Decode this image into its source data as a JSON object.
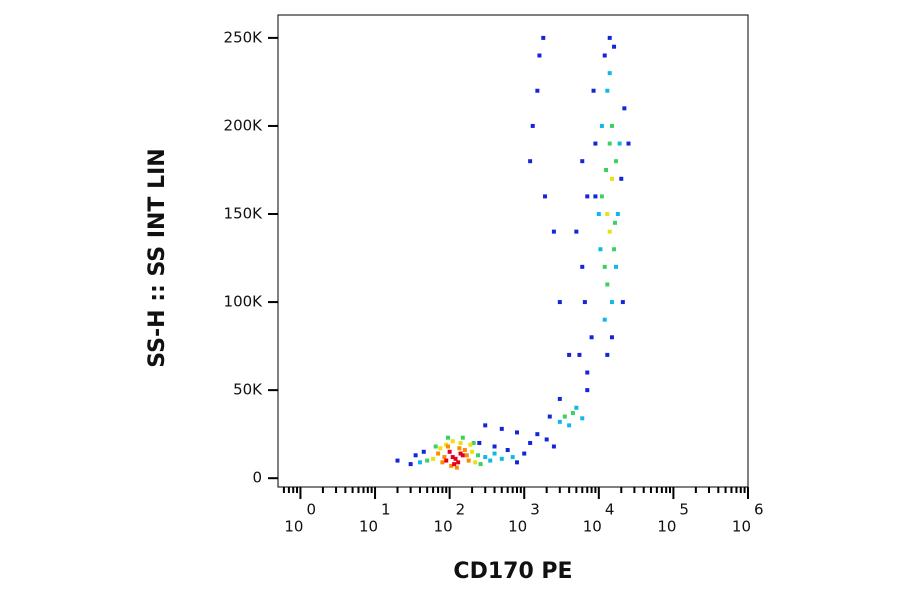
{
  "chart_data": {
    "type": "scatter",
    "xlabel": "CD170 PE",
    "ylabel": "SS-H :: SS INT LIN",
    "xscale": "log",
    "xlim": [
      0.5,
      1000000
    ],
    "ylim": [
      -5000,
      263000
    ],
    "xticks": [
      {
        "value": 1,
        "label": "10",
        "exponent": "0"
      },
      {
        "value": 10,
        "label": "10",
        "exponent": "1"
      },
      {
        "value": 100,
        "label": "10",
        "exponent": "2"
      },
      {
        "value": 1000,
        "label": "10",
        "exponent": "3"
      },
      {
        "value": 10000,
        "label": "10",
        "exponent": "4"
      },
      {
        "value": 100000,
        "label": "10",
        "exponent": "5"
      },
      {
        "value": 1000000,
        "label": "10",
        "exponent": "6"
      }
    ],
    "xminorticks": [
      0.6,
      0.7,
      0.8,
      0.9,
      2,
      3,
      4,
      5,
      6,
      7,
      8,
      9,
      20,
      30,
      40,
      50,
      60,
      70,
      80,
      90,
      200,
      300,
      400,
      500,
      600,
      700,
      800,
      900,
      2000,
      3000,
      4000,
      5000,
      6000,
      7000,
      8000,
      9000,
      20000,
      30000,
      40000,
      50000,
      60000,
      70000,
      80000,
      90000,
      200000,
      300000,
      400000,
      500000,
      600000,
      700000,
      800000,
      900000
    ],
    "yticks": [
      0,
      {
        "value": 50000,
        "label": "50K"
      },
      {
        "value": 100000,
        "label": "100K"
      },
      {
        "value": 150000,
        "label": "150K"
      },
      {
        "value": 200000,
        "label": "200K"
      },
      {
        "value": 250000,
        "label": "250K"
      }
    ],
    "series": [
      {
        "color": "#1426d8",
        "x": [
          20,
          30,
          35,
          45,
          250,
          400,
          600,
          800,
          1000,
          1200,
          1500,
          2000,
          2500,
          3000,
          2200,
          7000,
          8000,
          6000,
          5000,
          9000,
          20000,
          22000,
          21000,
          9000,
          8500,
          7000,
          6500,
          5500,
          12000,
          14000,
          16000,
          13000,
          15000,
          25000,
          1200,
          1300,
          1500,
          1600,
          1800,
          1900,
          2500,
          3000,
          4000,
          6000,
          7000,
          300,
          500,
          800
        ],
        "values": [
          10000,
          8000,
          13000,
          15000,
          20000,
          18000,
          16000,
          9000,
          14000,
          20000,
          25000,
          22000,
          18000,
          45000,
          35000,
          50000,
          80000,
          120000,
          140000,
          160000,
          170000,
          210000,
          100000,
          190000,
          220000,
          60000,
          100000,
          70000,
          240000,
          250000,
          245000,
          70000,
          80000,
          190000,
          180000,
          200000,
          220000,
          240000,
          250000,
          160000,
          140000,
          100000,
          70000,
          180000,
          160000,
          30000,
          28000,
          26000
        ]
      },
      {
        "color": "#10b8e8",
        "x": [
          40,
          300,
          350,
          400,
          500,
          700,
          3000,
          5000,
          4000,
          6000,
          10000,
          18000,
          11000,
          19000,
          13000,
          15000,
          12000,
          14000,
          17000,
          10500
        ],
        "values": [
          9000,
          12000,
          10000,
          14000,
          11000,
          12000,
          32000,
          40000,
          30000,
          34000,
          150000,
          150000,
          200000,
          190000,
          220000,
          100000,
          90000,
          230000,
          120000,
          130000
        ]
      },
      {
        "color": "#3cd060",
        "x": [
          50,
          240,
          260,
          65,
          210,
          150,
          95,
          12000,
          16000,
          11000,
          17000,
          14000,
          13000,
          15000,
          12500,
          16500,
          3500,
          4500
        ],
        "values": [
          10000,
          13000,
          8000,
          18000,
          20000,
          23000,
          23000,
          120000,
          130000,
          160000,
          180000,
          190000,
          110000,
          200000,
          175000,
          145000,
          35000,
          37000
        ]
      },
      {
        "color": "#e8e010",
        "x": [
          60,
          200,
          220,
          75,
          190,
          140,
          110,
          90,
          13000,
          15000,
          14000
        ],
        "values": [
          11000,
          15000,
          9000,
          17000,
          19000,
          20000,
          21000,
          19000,
          150000,
          170000,
          140000
        ]
      },
      {
        "color": "#ff8a00",
        "x": [
          70,
          80,
          160,
          180,
          95,
          135,
          125,
          170,
          85,
          105
        ],
        "values": [
          14000,
          9000,
          16000,
          10000,
          18000,
          17000,
          6000,
          13000,
          12000,
          7000
        ]
      },
      {
        "color": "#e4001c",
        "x": [
          90,
          110,
          130,
          150,
          100,
          120,
          140,
          115
        ],
        "values": [
          10000,
          12000,
          9000,
          13000,
          15000,
          11000,
          14000,
          8000
        ]
      }
    ]
  }
}
